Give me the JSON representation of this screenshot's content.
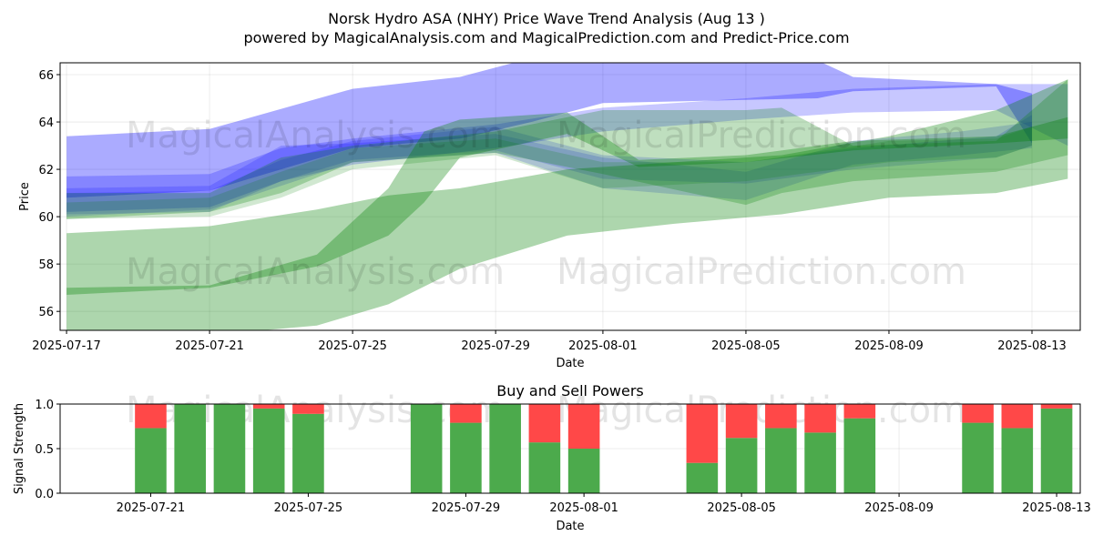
{
  "header": {
    "title": "Norsk Hydro ASA (NHY) Price Wave Trend Analysis (Aug 13 )",
    "subtitle": "powered by MagicalAnalysis.com and MagicalPrediction.com and Predict-Price.com"
  },
  "watermarks": {
    "left": "MagicalAnalysis.com",
    "right": "MagicalPrediction.com"
  },
  "chart_data": [
    {
      "type": "area",
      "title": "",
      "xlabel": "Date",
      "ylabel": "Price",
      "x_range": [
        "2025-07-17",
        "2025-08-14"
      ],
      "ylim": [
        55.2,
        66.5
      ],
      "x_ticks": [
        "2025-07-17",
        "2025-07-21",
        "2025-07-25",
        "2025-07-29",
        "2025-08-01",
        "2025-08-05",
        "2025-08-09",
        "2025-08-13"
      ],
      "y_ticks": [
        56,
        58,
        60,
        62,
        64,
        66
      ],
      "grid": true,
      "colors": {
        "blue": "#0000ff",
        "green": "#008000"
      },
      "series": [
        {
          "color": "blue",
          "opacity": 0.33,
          "points": [
            [
              "2025-07-17",
              63.4,
              60.8
            ],
            [
              "2025-07-21",
              63.7,
              61.1
            ],
            [
              "2025-07-25",
              65.4,
              62.9
            ],
            [
              "2025-07-28",
              65.9,
              63.3
            ],
            [
              "2025-07-30",
              66.7,
              64.0
            ],
            [
              "2025-08-01",
              66.9,
              64.8
            ],
            [
              "2025-08-04",
              66.9,
              64.9
            ],
            [
              "2025-08-07",
              66.6,
              65.0
            ],
            [
              "2025-08-08",
              65.9,
              65.3
            ],
            [
              "2025-08-12",
              65.6,
              65.5
            ],
            [
              "2025-08-13",
              65.2,
              63.1
            ]
          ]
        },
        {
          "color": "blue",
          "opacity": 0.22,
          "points": [
            [
              "2025-07-17",
              61.7,
              60.2
            ],
            [
              "2025-07-21",
              61.8,
              60.4
            ],
            [
              "2025-07-23",
              62.9,
              61.5
            ],
            [
              "2025-07-25",
              63.3,
              62.2
            ],
            [
              "2025-07-29",
              63.9,
              62.9
            ],
            [
              "2025-08-01",
              64.6,
              63.6
            ],
            [
              "2025-08-05",
              65.0,
              64.1
            ],
            [
              "2025-08-08",
              65.4,
              64.4
            ],
            [
              "2025-08-12",
              65.6,
              64.5
            ],
            [
              "2025-08-14",
              65.6,
              63.0
            ]
          ]
        },
        {
          "color": "blue",
          "opacity": 0.18,
          "points": [
            [
              "2025-07-17",
              61.2,
              60.0
            ],
            [
              "2025-07-21",
              61.3,
              60.3
            ],
            [
              "2025-07-23",
              63.0,
              61.3
            ],
            [
              "2025-07-25",
              63.1,
              62.3
            ],
            [
              "2025-07-29",
              63.5,
              62.7
            ],
            [
              "2025-08-01",
              62.5,
              61.2
            ],
            [
              "2025-08-05",
              61.9,
              60.7
            ],
            [
              "2025-08-08",
              63.2,
              62.2
            ],
            [
              "2025-08-11",
              63.6,
              62.6
            ],
            [
              "2025-08-13",
              64.0,
              62.9
            ]
          ]
        },
        {
          "color": "blue",
          "opacity": 0.18,
          "points": [
            [
              "2025-07-17",
              61.0,
              60.1
            ],
            [
              "2025-07-21",
              61.1,
              60.2
            ],
            [
              "2025-07-23",
              62.4,
              61.5
            ],
            [
              "2025-07-25",
              63.2,
              62.4
            ],
            [
              "2025-07-29",
              63.8,
              62.8
            ],
            [
              "2025-08-01",
              62.6,
              61.6
            ],
            [
              "2025-08-05",
              62.3,
              61.4
            ],
            [
              "2025-08-08",
              62.9,
              62.0
            ],
            [
              "2025-08-12",
              63.4,
              62.5
            ],
            [
              "2025-08-13",
              64.3,
              63.0
            ]
          ]
        },
        {
          "color": "green",
          "opacity": 0.32,
          "points": [
            [
              "2025-07-17",
              59.3,
              55.0
            ],
            [
              "2025-07-21",
              59.6,
              55.0
            ],
            [
              "2025-07-24",
              60.3,
              55.4
            ],
            [
              "2025-07-26",
              60.9,
              56.3
            ],
            [
              "2025-07-28",
              61.2,
              57.8
            ],
            [
              "2025-07-31",
              62.0,
              59.2
            ],
            [
              "2025-08-03",
              62.3,
              59.7
            ],
            [
              "2025-08-06",
              62.6,
              60.1
            ],
            [
              "2025-08-09",
              63.4,
              60.8
            ],
            [
              "2025-08-12",
              64.5,
              61.0
            ],
            [
              "2025-08-14",
              65.8,
              61.6
            ]
          ]
        },
        {
          "color": "green",
          "opacity": 0.32,
          "points": [
            [
              "2025-07-17",
              57.0,
              56.7
            ],
            [
              "2025-07-21",
              57.1,
              57.0
            ],
            [
              "2025-07-24",
              58.4,
              57.9
            ],
            [
              "2025-07-26",
              61.2,
              59.2
            ],
            [
              "2025-07-27",
              63.6,
              60.6
            ],
            [
              "2025-07-28",
              64.1,
              62.5
            ],
            [
              "2025-07-31",
              64.4,
              63.5
            ],
            [
              "2025-08-02",
              62.4,
              62.1
            ],
            [
              "2025-08-05",
              62.6,
              62.3
            ],
            [
              "2025-08-08",
              63.2,
              62.8
            ],
            [
              "2025-08-12",
              63.4,
              63.1
            ],
            [
              "2025-08-14",
              64.2,
              63.3
            ]
          ]
        },
        {
          "color": "green",
          "opacity": 0.25,
          "points": [
            [
              "2025-07-17",
              61.0,
              59.9
            ],
            [
              "2025-07-21",
              61.0,
              60.2
            ],
            [
              "2025-07-23",
              62.5,
              61.0
            ],
            [
              "2025-07-25",
              63.0,
              62.3
            ],
            [
              "2025-07-29",
              63.6,
              62.7
            ],
            [
              "2025-08-01",
              64.5,
              61.8
            ],
            [
              "2025-08-05",
              64.5,
              60.5
            ],
            [
              "2025-08-06",
              64.6,
              61.0
            ],
            [
              "2025-08-08",
              63.0,
              61.5
            ],
            [
              "2025-08-12",
              63.2,
              61.9
            ],
            [
              "2025-08-14",
              65.8,
              62.6
            ]
          ]
        },
        {
          "color": "green",
          "opacity": 0.18,
          "points": [
            [
              "2025-07-17",
              60.6,
              59.9
            ],
            [
              "2025-07-21",
              60.8,
              60.0
            ],
            [
              "2025-07-23",
              61.9,
              60.8
            ],
            [
              "2025-07-25",
              62.9,
              62.0
            ],
            [
              "2025-07-29",
              63.3,
              62.6
            ],
            [
              "2025-08-01",
              62.3,
              61.2
            ],
            [
              "2025-08-05",
              62.3,
              61.5
            ],
            [
              "2025-08-09",
              63.2,
              62.3
            ],
            [
              "2025-08-12",
              63.3,
              62.5
            ],
            [
              "2025-08-13",
              63.8,
              63.0
            ]
          ]
        }
      ]
    },
    {
      "type": "bar",
      "title": "Buy and Sell Powers",
      "xlabel": "Date",
      "ylabel": "Signal Strength",
      "ylim": [
        0,
        1
      ],
      "y_ticks": [
        "0.0",
        "0.5",
        "1.0"
      ],
      "x_ticks": [
        "2025-07-21",
        "2025-07-25",
        "2025-07-29",
        "2025-08-01",
        "2025-08-05",
        "2025-08-09",
        "2025-08-13"
      ],
      "x_range": [
        "2025-07-19",
        "2025-08-14"
      ],
      "grid": true,
      "colors": {
        "buy": "#4caa4c",
        "sell": "#ff4848"
      },
      "dates": [
        "2025-07-21",
        "2025-07-22",
        "2025-07-23",
        "2025-07-24",
        "2025-07-25",
        "2025-07-28",
        "2025-07-29",
        "2025-07-30",
        "2025-07-31",
        "2025-08-01",
        "2025-08-04",
        "2025-08-05",
        "2025-08-06",
        "2025-08-07",
        "2025-08-08",
        "2025-08-11",
        "2025-08-12",
        "2025-08-13"
      ],
      "buy": [
        0.73,
        1.0,
        1.0,
        0.95,
        0.89,
        1.0,
        0.79,
        1.0,
        0.57,
        0.5,
        0.34,
        0.62,
        0.73,
        0.68,
        0.84,
        0.79,
        0.73,
        0.95
      ],
      "sell": [
        0.27,
        0.0,
        0.0,
        0.05,
        0.11,
        0.0,
        0.21,
        0.0,
        0.43,
        0.5,
        0.66,
        0.38,
        0.27,
        0.32,
        0.16,
        0.21,
        0.27,
        0.05
      ]
    }
  ]
}
